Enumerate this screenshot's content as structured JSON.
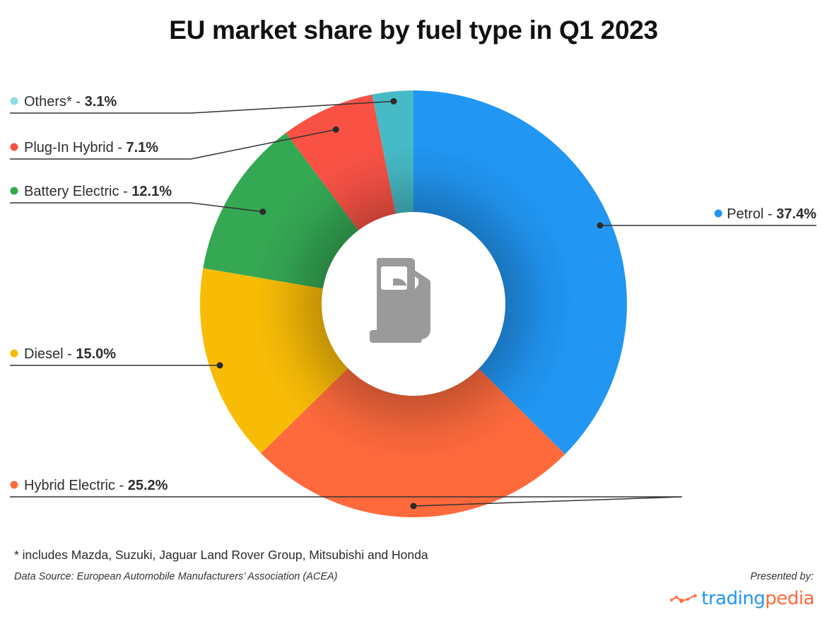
{
  "chart_data": {
    "type": "pie",
    "subtype": "donut",
    "title": "EU market share by fuel type in Q1 2023",
    "unit": "%",
    "start": "12 o'clock, clockwise",
    "slices": [
      {
        "name": "Petrol",
        "value": 37.4,
        "label": "37.4%",
        "color": "#2196f3",
        "label_side": "right"
      },
      {
        "name": "Hybrid Electric",
        "value": 25.2,
        "label": "25.2%",
        "color": "#ff6a3d",
        "label_side": "left"
      },
      {
        "name": "Diesel",
        "value": 15.0,
        "label": "15.0%",
        "color": "#f9bc06",
        "label_side": "left"
      },
      {
        "name": "Battery Electric",
        "value": 12.1,
        "label": "12.1%",
        "color": "#34a853",
        "label_side": "left"
      },
      {
        "name": "Plug-In Hybrid",
        "value": 7.1,
        "label": "7.1%",
        "color": "#f95245",
        "label_side": "left"
      },
      {
        "name": "Others*",
        "value": 3.1,
        "label": "3.1%",
        "color": "#46bbc6",
        "label_side": "left",
        "marker_color": "#8fdde5"
      }
    ],
    "center_icon": "fuel-pump-icon",
    "legend": "none (leader-line labels)"
  },
  "footer": {
    "footnote": "* includes Mazda, Suzuki, Jaguar Land Rover Group, Mitsubishi and Honda",
    "source": "Data Source: European Automobile Manufacturers’ Association (ACEA)",
    "presented_by": "Presented by:",
    "brand_part1": "trading",
    "brand_part2": "pedia"
  }
}
